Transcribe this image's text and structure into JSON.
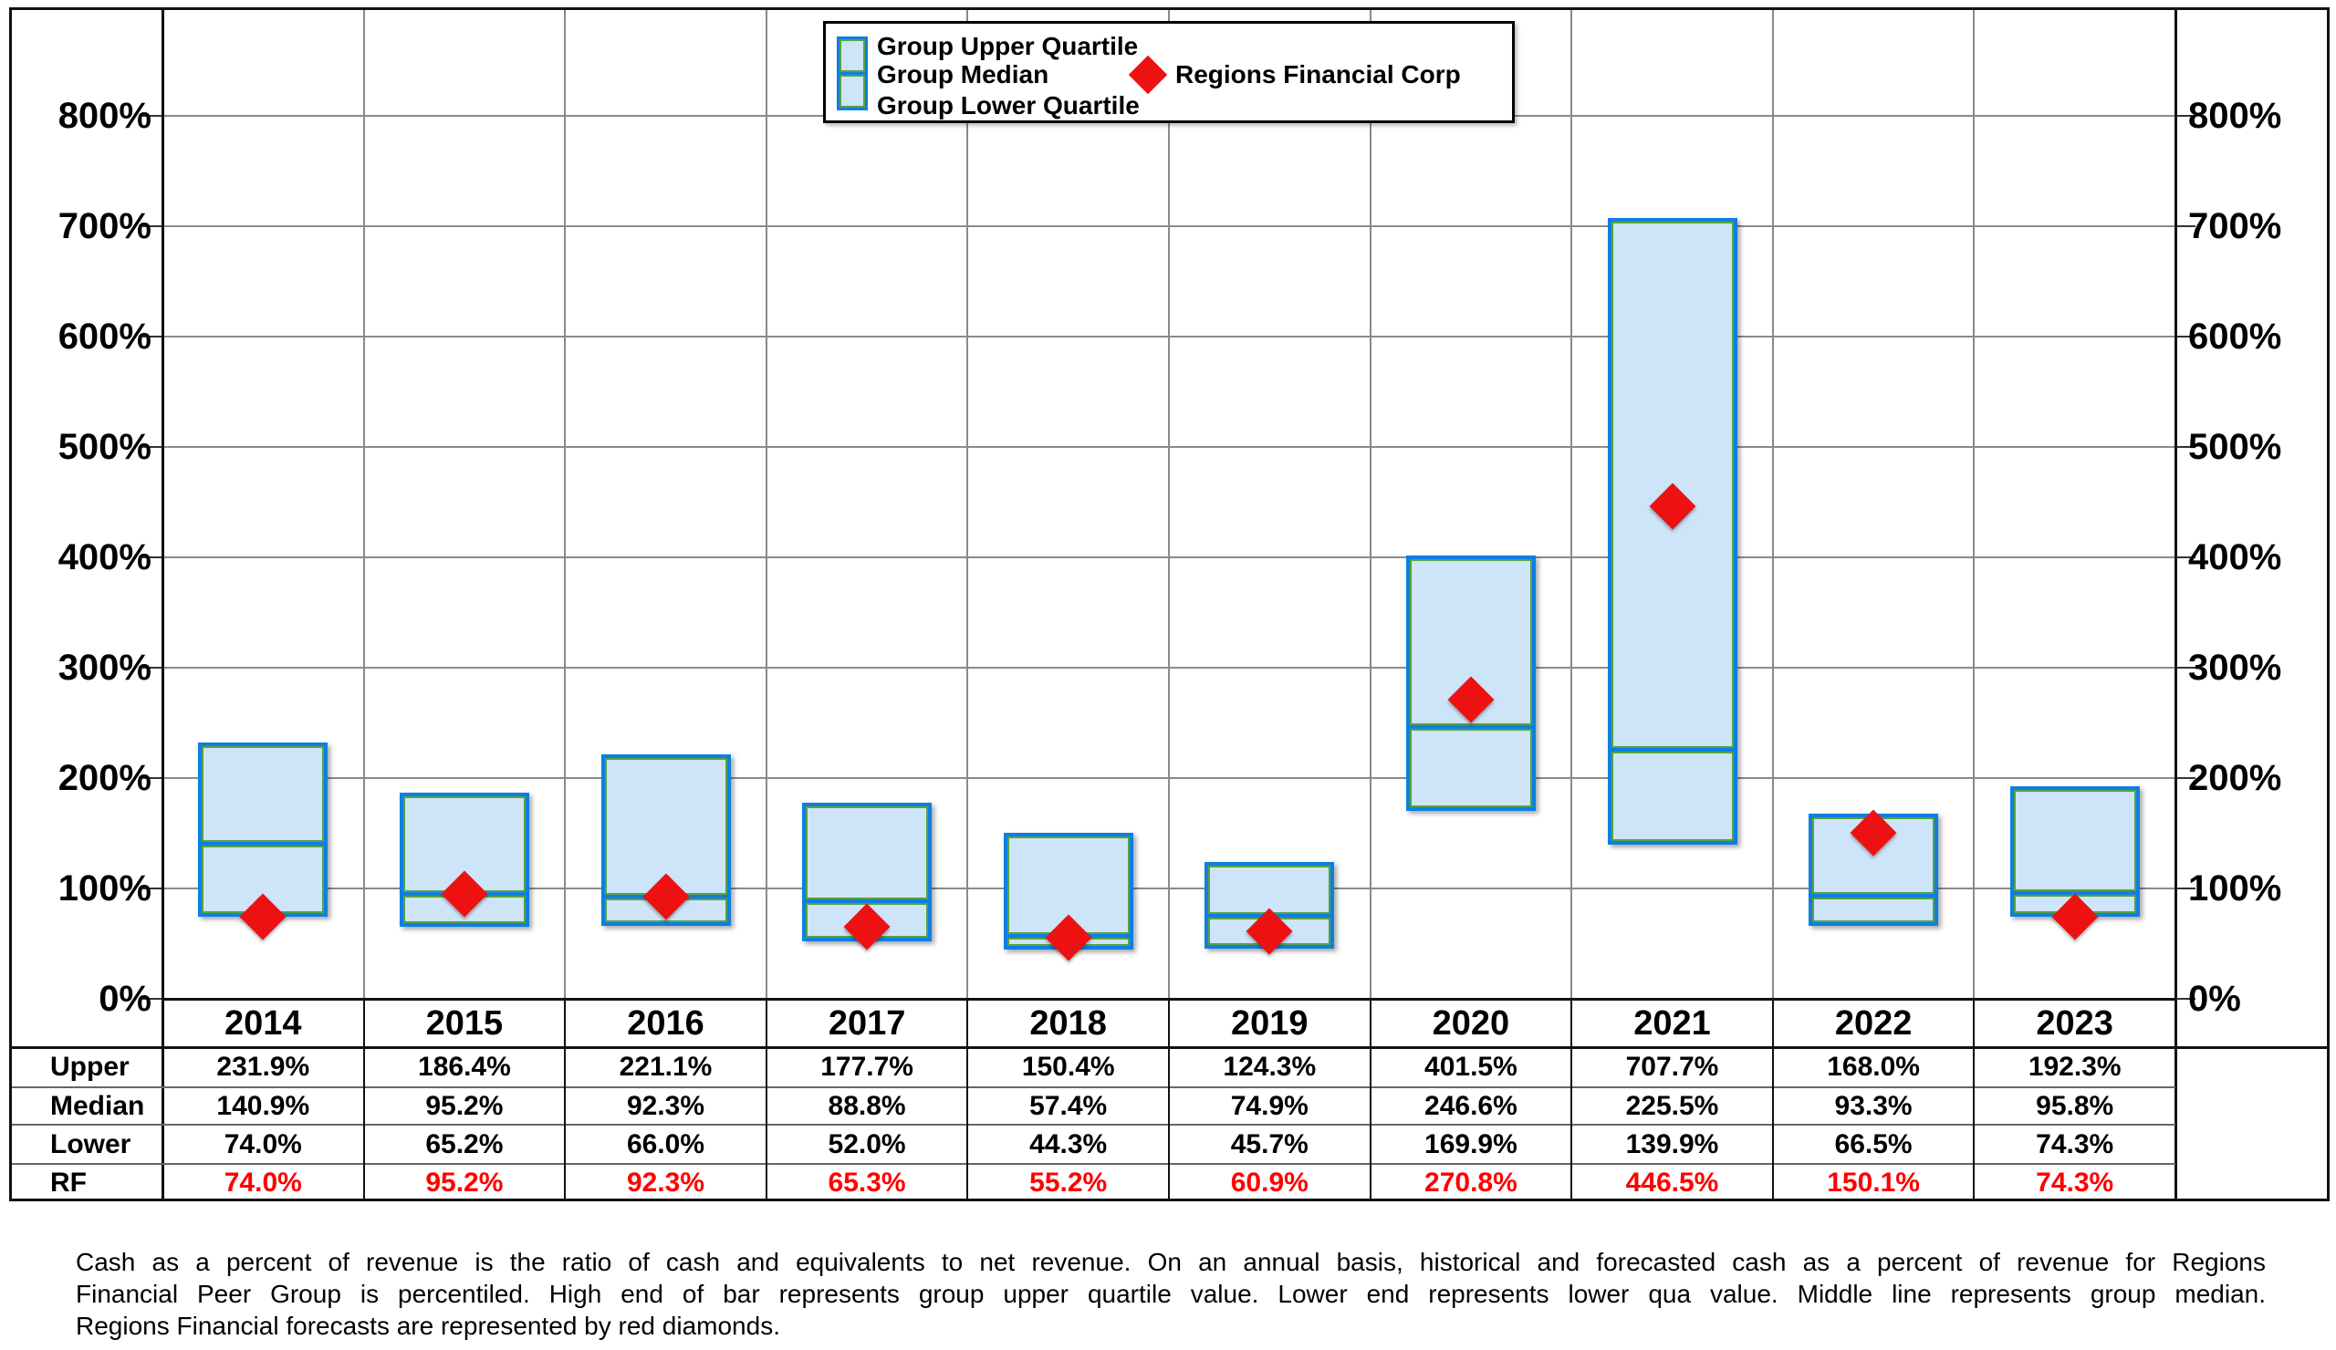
{
  "figure": {
    "background": "#ffffff",
    "colors": {
      "bar_fill": "#cde4f9",
      "bar_border_blue": "#0d7fe3",
      "bar_inner_green": "#58a23c",
      "diamond_red": "#ee1111",
      "rf_text_red": "#ff0000",
      "gridline_gray": "#8a8a8a",
      "frame_black": "#111111",
      "row_separator_gray": "#666666"
    },
    "legend": {
      "group_items": [
        "Group Upper Quartile",
        "Group Median",
        "Group Lower Quartile"
      ],
      "marker_label": "Regions Financial Corp"
    },
    "footnote_lines": [
      "Cash as a percent of revenue is the ratio of cash and equivalents to net revenue.  On an annual basis, historical and forecasted cash as a percent of revenue for Regions",
      "Financial Peer Group is percentiled.  High end of bar represents group upper quartile value.  Lower end represents lower qua value.  Middle line represents group median.",
      "Regions Financial forecasts are represented by red diamonds."
    ]
  },
  "chart_data": {
    "type": "bar",
    "subtype": "floating-quartile-bars-with-scatter-diamonds",
    "categories": [
      "2014",
      "2015",
      "2016",
      "2017",
      "2018",
      "2019",
      "2020",
      "2021",
      "2022",
      "2023"
    ],
    "series": [
      {
        "name": "Group Upper Quartile",
        "role": "upper",
        "values": [
          231.9,
          186.4,
          221.1,
          177.7,
          150.4,
          124.3,
          401.5,
          707.7,
          168.0,
          192.3
        ]
      },
      {
        "name": "Group Median",
        "role": "median",
        "values": [
          140.9,
          95.2,
          92.3,
          88.8,
          57.4,
          74.9,
          246.6,
          225.5,
          93.3,
          95.8
        ]
      },
      {
        "name": "Group Lower Quartile",
        "role": "lower",
        "values": [
          74.0,
          65.2,
          66.0,
          52.0,
          44.3,
          45.7,
          169.9,
          139.9,
          66.5,
          74.3
        ]
      },
      {
        "name": "Regions Financial Corp",
        "role": "rf-diamond",
        "values": [
          74.0,
          95.2,
          92.3,
          65.3,
          55.2,
          60.9,
          270.8,
          446.5,
          150.1,
          74.3
        ]
      }
    ],
    "table": {
      "row_headers": [
        "Upper",
        "Median",
        "Lower",
        "RF"
      ]
    },
    "title": "",
    "xlabel": "",
    "ylabel": "",
    "value_suffix": "%",
    "yticks": [
      0,
      100,
      200,
      300,
      400,
      500,
      600,
      700,
      800
    ],
    "ylim": [
      0,
      898
    ],
    "grid": true,
    "legend_position": "top-center",
    "dual_y_axis_labels": true
  }
}
